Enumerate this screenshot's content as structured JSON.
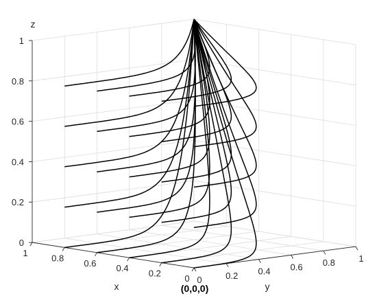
{
  "chart_data": {
    "type": "line",
    "projection": "3d",
    "xlabel": "x",
    "ylabel": "y",
    "zlabel": "z",
    "xlim": [
      0,
      1
    ],
    "ylim": [
      0,
      1
    ],
    "zlim": [
      0,
      1
    ],
    "x_ticks": [
      "0",
      "0.2",
      "0.4",
      "0.6",
      "0.8",
      "1"
    ],
    "y_ticks": [
      "0",
      "0.2",
      "0.4",
      "0.6",
      "0.8",
      "1"
    ],
    "z_ticks": [
      "0",
      "0.2",
      "0.4",
      "0.6",
      "0.8",
      "1"
    ],
    "grid": true,
    "line_color": "#000000",
    "annotation": "(0,0,0)",
    "target_point": [
      1,
      1,
      1
    ],
    "start_x_values": [
      0,
      0.2,
      0.4,
      0.6,
      0.8
    ],
    "start_z_values": [
      0,
      0.2,
      0.4,
      0.6,
      0.8
    ],
    "start_y": 0
  }
}
